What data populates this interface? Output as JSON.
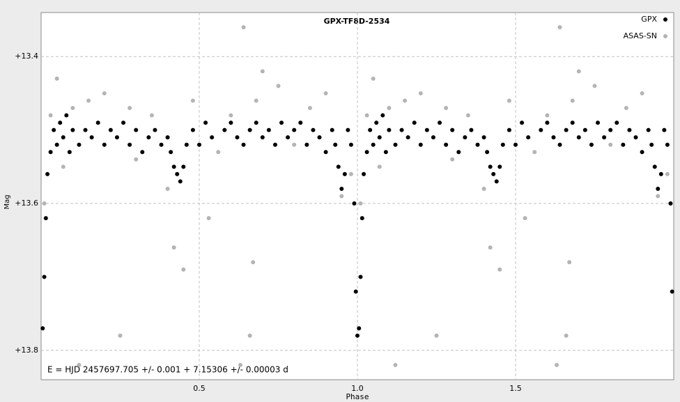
{
  "chart_data": {
    "type": "scatter",
    "title": "GPX-TF8D-2534",
    "x_label": "Phase",
    "y_label": "Mag",
    "annotation": "E = HJD 2457697.705 +/- 0.001 + 7.15306 +/- 0.00003 d",
    "xlim": [
      0,
      2
    ],
    "ylim": [
      13.84,
      13.34
    ],
    "xticks": [
      0.5,
      {
        "value": 1.0,
        "label": "1.0"
      },
      1.5
    ],
    "yticks": [
      {
        "value": 13.4,
        "label": "+13.4"
      },
      {
        "value": 13.6,
        "label": "+13.6"
      },
      {
        "value": 13.8,
        "label": "+13.8"
      }
    ],
    "grid": true,
    "legend": "upper right",
    "series": [
      {
        "name": "GPX",
        "color": "#000000",
        "x": [
          0.005,
          0.01,
          0.015,
          0.02,
          0.03,
          0.04,
          0.05,
          0.06,
          0.07,
          0.08,
          0.09,
          0.1,
          0.12,
          0.14,
          0.16,
          0.18,
          0.2,
          0.22,
          0.24,
          0.26,
          0.28,
          0.3,
          0.32,
          0.34,
          0.36,
          0.38,
          0.4,
          0.41,
          0.42,
          0.43,
          0.44,
          0.45,
          0.46,
          0.48,
          0.5,
          0.52,
          0.54,
          0.58,
          0.6,
          0.62,
          0.64,
          0.66,
          0.68,
          0.7,
          0.72,
          0.74,
          0.76,
          0.78,
          0.8,
          0.82,
          0.84,
          0.86,
          0.88,
          0.9,
          0.92,
          0.93,
          0.94,
          0.95,
          0.96,
          0.97,
          0.98,
          0.99,
          0.995,
          1.0,
          1.005,
          1.01,
          1.015,
          1.02,
          1.03,
          1.04,
          1.05,
          1.06,
          1.07,
          1.08,
          1.09,
          1.1,
          1.12,
          1.14,
          1.16,
          1.18,
          1.2,
          1.22,
          1.24,
          1.26,
          1.28,
          1.3,
          1.32,
          1.34,
          1.36,
          1.38,
          1.4,
          1.41,
          1.42,
          1.43,
          1.44,
          1.45,
          1.46,
          1.48,
          1.5,
          1.52,
          1.54,
          1.58,
          1.6,
          1.62,
          1.64,
          1.66,
          1.68,
          1.7,
          1.72,
          1.74,
          1.76,
          1.78,
          1.8,
          1.82,
          1.84,
          1.86,
          1.88,
          1.9,
          1.92,
          1.93,
          1.94,
          1.95,
          1.96,
          1.97,
          1.98,
          1.99,
          1.995
        ],
        "values": [
          13.77,
          13.7,
          13.62,
          13.56,
          13.53,
          13.5,
          13.52,
          13.49,
          13.51,
          13.48,
          13.53,
          13.5,
          13.52,
          13.5,
          13.51,
          13.49,
          13.52,
          13.5,
          13.51,
          13.49,
          13.52,
          13.5,
          13.53,
          13.51,
          13.5,
          13.52,
          13.51,
          13.53,
          13.55,
          13.56,
          13.57,
          13.55,
          13.52,
          13.5,
          13.52,
          13.49,
          13.51,
          13.5,
          13.49,
          13.51,
          13.52,
          13.5,
          13.49,
          13.51,
          13.5,
          13.52,
          13.49,
          13.51,
          13.5,
          13.49,
          13.52,
          13.5,
          13.51,
          13.53,
          13.5,
          13.52,
          13.55,
          13.58,
          13.56,
          13.5,
          13.52,
          13.6,
          13.72,
          13.78,
          13.77,
          13.7,
          13.62,
          13.56,
          13.53,
          13.5,
          13.52,
          13.49,
          13.51,
          13.48,
          13.53,
          13.5,
          13.52,
          13.5,
          13.51,
          13.49,
          13.52,
          13.5,
          13.51,
          13.49,
          13.52,
          13.5,
          13.53,
          13.51,
          13.5,
          13.52,
          13.51,
          13.53,
          13.55,
          13.56,
          13.57,
          13.55,
          13.52,
          13.5,
          13.52,
          13.49,
          13.51,
          13.5,
          13.49,
          13.51,
          13.52,
          13.5,
          13.49,
          13.51,
          13.5,
          13.52,
          13.49,
          13.51,
          13.5,
          13.49,
          13.52,
          13.5,
          13.51,
          13.53,
          13.5,
          13.52,
          13.55,
          13.58,
          13.56,
          13.5,
          13.52,
          13.6,
          13.72
        ]
      },
      {
        "name": "ASAS-SN",
        "color": "#b4b4b4",
        "x": [
          0.01,
          0.03,
          0.05,
          0.07,
          0.1,
          0.12,
          0.15,
          0.2,
          0.25,
          0.28,
          0.3,
          0.35,
          0.4,
          0.42,
          0.45,
          0.48,
          0.53,
          0.56,
          0.6,
          0.64,
          0.68,
          0.7,
          0.75,
          0.8,
          0.85,
          0.9,
          0.95,
          0.98,
          0.63,
          0.67,
          0.66,
          1.01,
          1.03,
          1.05,
          1.07,
          1.1,
          1.12,
          1.15,
          1.2,
          1.25,
          1.28,
          1.3,
          1.35,
          1.4,
          1.42,
          1.45,
          1.48,
          1.53,
          1.56,
          1.6,
          1.64,
          1.68,
          1.7,
          1.75,
          1.8,
          1.85,
          1.9,
          1.95,
          1.98,
          1.63,
          1.67,
          1.66
        ],
        "values": [
          13.6,
          13.48,
          13.43,
          13.55,
          13.47,
          13.82,
          13.46,
          13.45,
          13.78,
          13.47,
          13.54,
          13.48,
          13.58,
          13.66,
          13.69,
          13.46,
          13.62,
          13.53,
          13.48,
          13.36,
          13.46,
          13.42,
          13.44,
          13.52,
          13.47,
          13.45,
          13.59,
          13.56,
          13.82,
          13.68,
          13.78,
          13.6,
          13.48,
          13.43,
          13.55,
          13.47,
          13.82,
          13.46,
          13.45,
          13.78,
          13.47,
          13.54,
          13.48,
          13.58,
          13.66,
          13.69,
          13.46,
          13.62,
          13.53,
          13.48,
          13.36,
          13.46,
          13.42,
          13.44,
          13.52,
          13.47,
          13.45,
          13.59,
          13.56,
          13.82,
          13.68,
          13.78
        ]
      }
    ]
  }
}
